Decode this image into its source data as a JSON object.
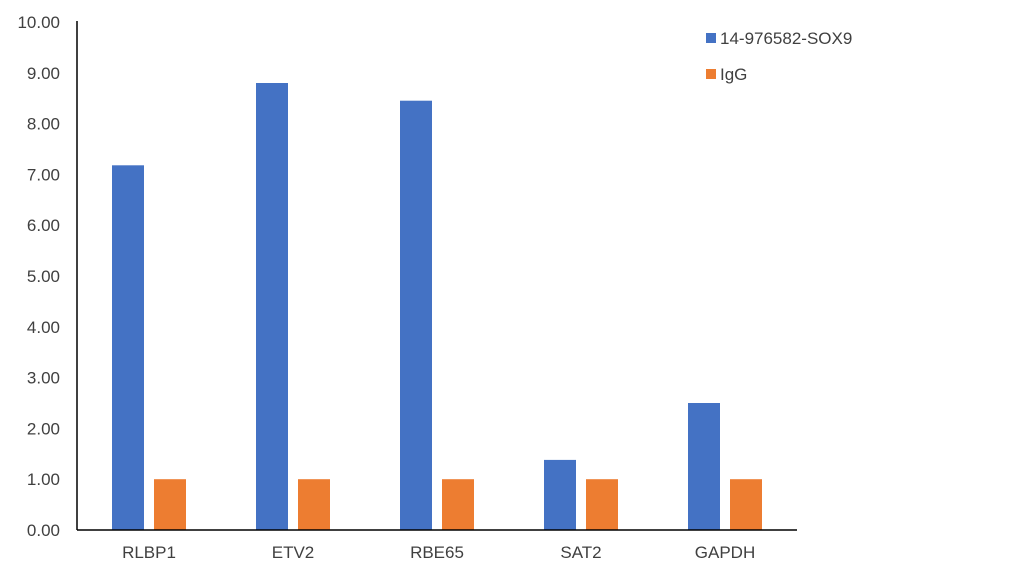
{
  "chart_data": {
    "type": "bar",
    "categories": [
      "RLBP1",
      "ETV2",
      "RBE65",
      "SAT2",
      "GAPDH"
    ],
    "series": [
      {
        "name": "14-976582-SOX9",
        "color": "#4472c4",
        "values": [
          7.18,
          8.8,
          8.45,
          1.38,
          2.5
        ]
      },
      {
        "name": "IgG",
        "color": "#ed7d31",
        "values": [
          1.0,
          1.0,
          1.0,
          1.0,
          1.0
        ]
      }
    ],
    "yticks": [
      "0.00",
      "1.00",
      "2.00",
      "3.00",
      "4.00",
      "5.00",
      "6.00",
      "7.00",
      "8.00",
      "9.00",
      "10.00"
    ],
    "ylim": [
      0,
      10
    ],
    "grid": false,
    "legend_position": "top-right",
    "axis_color": "#000000",
    "text_color": "#404040"
  }
}
